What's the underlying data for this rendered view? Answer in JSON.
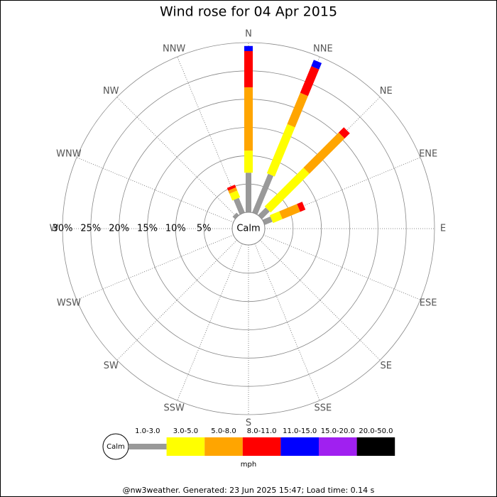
{
  "chart_data": {
    "type": "windrose",
    "title": "Wind rose for 04 Apr 2015",
    "directions": [
      "N",
      "NNE",
      "NE",
      "ENE",
      "E",
      "ESE",
      "SE",
      "SSE",
      "S",
      "SSW",
      "SW",
      "WSW",
      "W",
      "WNW",
      "NW",
      "NNW"
    ],
    "calm_label": "Calm",
    "rlim": [
      0,
      30
    ],
    "rticks": [
      {
        "value": 5,
        "label": "5%"
      },
      {
        "value": 10,
        "label": "10%"
      },
      {
        "value": 15,
        "label": "15%"
      },
      {
        "value": 20,
        "label": "20%"
      },
      {
        "value": 25,
        "label": "25%"
      },
      {
        "value": 30,
        "label": "30%"
      }
    ],
    "series": [
      {
        "name": "1.0-3.0",
        "color": "#999999",
        "values": [
          7.0,
          7.4,
          1.9,
          1.5,
          0,
          0,
          0,
          0,
          0,
          0,
          0,
          0,
          0,
          0,
          0.6,
          2.8
        ]
      },
      {
        "name": "3.0-5.0",
        "color": "#ffff00",
        "values": [
          3.9,
          9.4,
          9.7,
          1.8,
          0,
          0,
          0,
          0,
          0,
          0,
          0,
          0,
          0,
          0,
          0,
          1.3
        ]
      },
      {
        "name": "5.0-8.0",
        "color": "#ffa500",
        "values": [
          11.2,
          6.0,
          8.8,
          3.4,
          0,
          0,
          0,
          0,
          0,
          0,
          0,
          0,
          0,
          0,
          0,
          0.6
        ]
      },
      {
        "name": "8.0-11.0",
        "color": "#ff0000",
        "values": [
          6.4,
          5.1,
          1.3,
          1.0,
          0,
          0,
          0,
          0,
          0,
          0,
          0,
          0,
          0,
          0,
          0,
          0.5
        ]
      },
      {
        "name": "11.0-15.0",
        "color": "#0000ff",
        "values": [
          0.9,
          1.2,
          0,
          0,
          0,
          0,
          0,
          0,
          0,
          0,
          0,
          0,
          0,
          0,
          0,
          0
        ]
      },
      {
        "name": "15.0-20.0",
        "color": "#a020f0",
        "values": [
          0,
          0,
          0,
          0,
          0,
          0,
          0,
          0,
          0,
          0,
          0,
          0,
          0,
          0,
          0,
          0
        ]
      },
      {
        "name": "20.0-50.0",
        "color": "#000000",
        "values": [
          0,
          0,
          0,
          0,
          0,
          0,
          0,
          0,
          0,
          0,
          0,
          0,
          0,
          0,
          0,
          0
        ]
      }
    ],
    "unit": "mph",
    "footer": "@nw3weather. Generated: 23 Jun 2025 15:47; Load time: 0.14 s"
  }
}
